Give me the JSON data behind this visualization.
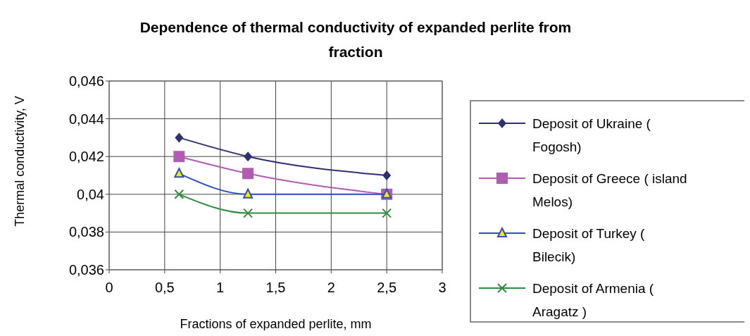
{
  "chart_data": {
    "type": "line",
    "title": "Dependence of thermal conductivity of expanded perlite from fraction",
    "xlabel": "Fractions of expanded perlite, mm",
    "ylabel": "Thermal conductivity, V",
    "x": [
      0.63,
      1.25,
      2.5
    ],
    "series": [
      {
        "name": "Deposit of Ukraine ( Fogosh)",
        "color": "#2e3070",
        "marker": "diamond",
        "values": [
          0.043,
          0.042,
          0.041
        ]
      },
      {
        "name": "Deposit of Greece ( island Melos)",
        "color": "#b05cb0",
        "marker": "square",
        "values": [
          0.042,
          0.0411,
          0.04
        ]
      },
      {
        "name": "Deposit of Turkey ( Bilecik)",
        "color": "#3050b8",
        "marker": "triangle",
        "values": [
          0.0411,
          0.04,
          0.04
        ]
      },
      {
        "name": "Deposit of Armenia ( Aragatz )",
        "color": "#2e8b40",
        "marker": "cross",
        "values": [
          0.04,
          0.039,
          0.039
        ]
      }
    ],
    "xlim": [
      0,
      3
    ],
    "xticks": [
      0,
      {
        "value": 0.5,
        "label": "0,5"
      },
      1,
      {
        "value": 1.5,
        "label": "1,5"
      },
      2,
      {
        "value": 2.5,
        "label": "2,5"
      },
      3
    ],
    "ylim": [
      0.036,
      0.046
    ],
    "yticks": [
      {
        "value": 0.036,
        "label": "0,036"
      },
      {
        "value": 0.038,
        "label": "0,038"
      },
      {
        "value": 0.04,
        "label": "0,04"
      },
      {
        "value": 0.042,
        "label": "0,042"
      },
      {
        "value": 0.044,
        "label": "0,044"
      },
      {
        "value": 0.046,
        "label": "0,046"
      }
    ],
    "grid": true,
    "legend": "right",
    "line_style": "solid"
  }
}
